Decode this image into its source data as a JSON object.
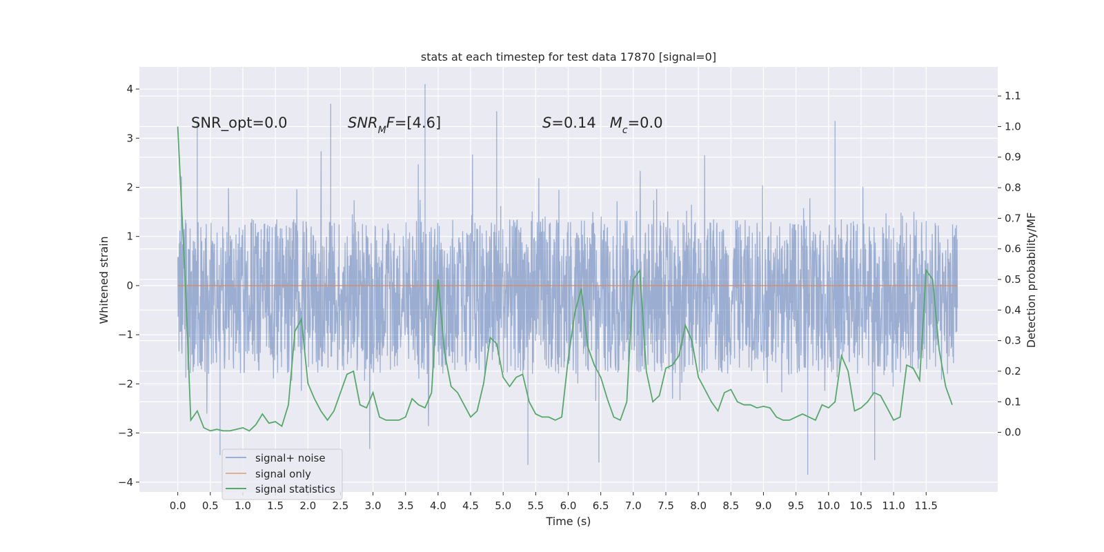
{
  "chart_data": {
    "type": "line",
    "title": "stats at each timestep for test data 17870 [signal=0]",
    "xlabel": "Time (s)",
    "ylabel": "Whitened strain",
    "y2label": "Detection probability/MF",
    "xlim": [
      -0.59,
      12.6
    ],
    "ylim": [
      -4.2,
      4.45
    ],
    "y2lim": [
      -0.195,
      1.195
    ],
    "xticks": [
      0.0,
      0.5,
      1.0,
      1.5,
      2.0,
      2.5,
      3.0,
      3.5,
      4.0,
      4.5,
      5.0,
      5.5,
      6.0,
      6.5,
      7.0,
      7.5,
      8.0,
      8.5,
      9.0,
      9.5,
      10.0,
      10.5,
      11.0,
      11.5
    ],
    "xtick_labels": [
      "0.0",
      "0.5",
      "1.0",
      "1.5",
      "2.0",
      "2.5",
      "3.0",
      "3.5",
      "4.0",
      "4.5",
      "5.0",
      "5.5",
      "6.0",
      "6.5",
      "7.0",
      "7.5",
      "8.0",
      "8.5",
      "9.0",
      "9.5",
      "10.0",
      "10.5",
      "11.0",
      "11.5"
    ],
    "yticks": [
      -4,
      -3,
      -2,
      -1,
      0,
      1,
      2,
      3,
      4
    ],
    "ytick_labels": [
      "−4",
      "−3",
      "−2",
      "−1",
      "0",
      "1",
      "2",
      "3",
      "4"
    ],
    "y2ticks": [
      0.0,
      0.1,
      0.2,
      0.3,
      0.4,
      0.5,
      0.6,
      0.7,
      0.8,
      0.9,
      1.0,
      1.1
    ],
    "y2tick_labels": [
      "0.0",
      "0.1",
      "0.2",
      "0.3",
      "0.4",
      "0.5",
      "0.6",
      "0.7",
      "0.8",
      "0.9",
      "1.0",
      "1.1"
    ],
    "grid": true,
    "legend_position": "lower-left",
    "annotations": [
      {
        "text": "SNR_opt=0.0",
        "x": 0.2,
        "y": 3.35
      },
      {
        "text": "SNR_MF=[4.6]",
        "x": 2.6,
        "y": 3.35
      },
      {
        "text": "S=0.14   M_c=0.0",
        "x": 5.6,
        "y": 3.35
      }
    ],
    "noise_series": {
      "name": "signal+ noise",
      "color": "#4c72b0",
      "t_range": [
        0.0,
        11.98
      ],
      "core_envelope": [
        -1.8,
        1.35
      ],
      "notable_peaks": [
        {
          "x": 3.8,
          "y": 4.1
        },
        {
          "x": 2.35,
          "y": 3.7
        },
        {
          "x": 4.9,
          "y": 3.55
        },
        {
          "x": 0.3,
          "y": 3.35
        },
        {
          "x": 10.1,
          "y": 3.35
        },
        {
          "x": 9.68,
          "y": -3.85
        },
        {
          "x": 5.38,
          "y": -3.65
        },
        {
          "x": 6.47,
          "y": -3.6
        },
        {
          "x": 0.65,
          "y": -3.45
        },
        {
          "x": 10.71,
          "y": -3.55
        }
      ]
    },
    "series": [
      {
        "name": "signal only",
        "color": "#dd8452",
        "x": [
          0.0,
          11.98
        ],
        "y": [
          0.0,
          0.0
        ]
      },
      {
        "name": "signal statistics",
        "color": "#55a868",
        "axis": "right",
        "x": [
          0.0,
          0.125,
          0.2,
          0.3,
          0.4,
          0.5,
          0.6,
          0.7,
          0.8,
          0.9,
          1.0,
          1.1,
          1.2,
          1.3,
          1.4,
          1.5,
          1.6,
          1.7,
          1.8,
          1.9,
          2.0,
          2.1,
          2.2,
          2.3,
          2.4,
          2.5,
          2.6,
          2.7,
          2.8,
          2.9,
          3.0,
          3.1,
          3.2,
          3.3,
          3.4,
          3.5,
          3.6,
          3.7,
          3.8,
          3.9,
          4.0,
          4.1,
          4.2,
          4.3,
          4.4,
          4.5,
          4.6,
          4.7,
          4.8,
          4.9,
          5.0,
          5.1,
          5.2,
          5.3,
          5.4,
          5.5,
          5.6,
          5.7,
          5.8,
          5.9,
          6.0,
          6.1,
          6.2,
          6.3,
          6.4,
          6.5,
          6.6,
          6.7,
          6.8,
          6.9,
          7.0,
          7.1,
          7.2,
          7.3,
          7.4,
          7.5,
          7.6,
          7.7,
          7.8,
          7.9,
          8.0,
          8.1,
          8.2,
          8.3,
          8.4,
          8.5,
          8.6,
          8.7,
          8.8,
          8.9,
          9.0,
          9.1,
          9.2,
          9.3,
          9.4,
          9.5,
          9.6,
          9.7,
          9.8,
          9.9,
          10.0,
          10.1,
          10.2,
          10.3,
          10.4,
          10.5,
          10.6,
          10.7,
          10.8,
          10.9,
          11.0,
          11.1,
          11.2,
          11.3,
          11.4,
          11.5,
          11.6,
          11.7,
          11.8,
          11.9
        ],
        "y": [
          1.0,
          0.45,
          0.04,
          0.07,
          0.015,
          0.005,
          0.01,
          0.005,
          0.005,
          0.01,
          0.015,
          0.005,
          0.025,
          0.06,
          0.03,
          0.035,
          0.02,
          0.09,
          0.33,
          0.37,
          0.16,
          0.11,
          0.07,
          0.04,
          0.07,
          0.13,
          0.19,
          0.2,
          0.09,
          0.08,
          0.13,
          0.05,
          0.04,
          0.04,
          0.04,
          0.05,
          0.11,
          0.09,
          0.08,
          0.13,
          0.5,
          0.26,
          0.15,
          0.13,
          0.09,
          0.05,
          0.07,
          0.16,
          0.31,
          0.29,
          0.18,
          0.15,
          0.18,
          0.19,
          0.1,
          0.06,
          0.05,
          0.05,
          0.04,
          0.05,
          0.24,
          0.39,
          0.47,
          0.28,
          0.22,
          0.18,
          0.11,
          0.05,
          0.04,
          0.1,
          0.5,
          0.53,
          0.2,
          0.1,
          0.12,
          0.21,
          0.22,
          0.25,
          0.35,
          0.3,
          0.18,
          0.14,
          0.1,
          0.07,
          0.13,
          0.14,
          0.1,
          0.09,
          0.09,
          0.08,
          0.085,
          0.08,
          0.05,
          0.04,
          0.04,
          0.05,
          0.06,
          0.05,
          0.04,
          0.09,
          0.08,
          0.1,
          0.25,
          0.2,
          0.07,
          0.08,
          0.1,
          0.13,
          0.12,
          0.08,
          0.04,
          0.05,
          0.22,
          0.21,
          0.17,
          0.53,
          0.5,
          0.27,
          0.15,
          0.09
        ]
      }
    ]
  }
}
